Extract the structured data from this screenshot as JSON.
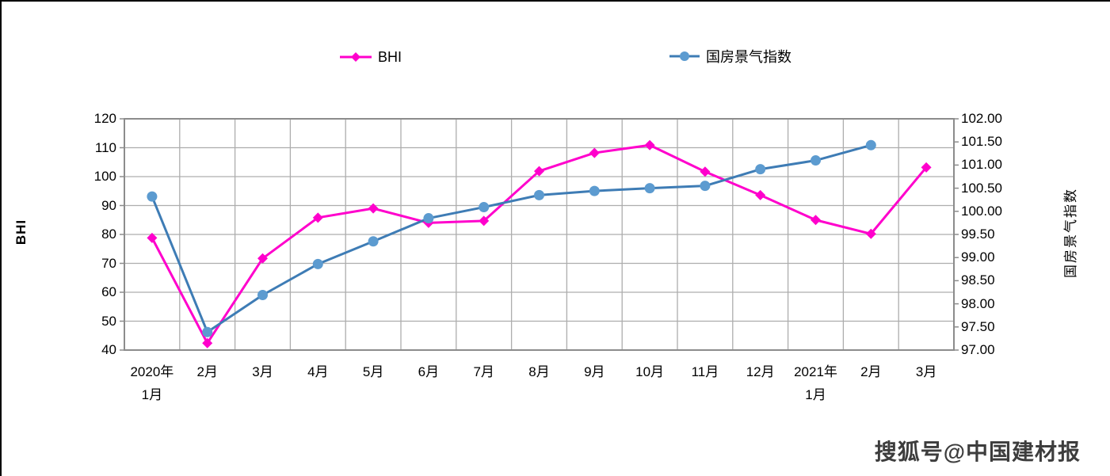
{
  "page": {
    "background": "#ffffff",
    "frame_color": "#000000"
  },
  "legend": {
    "items": [
      {
        "label": "BHI",
        "color": "#FF00CC",
        "marker": "diamond",
        "marker_color": "#FF00CC"
      },
      {
        "label": "国房景气指数",
        "color": "#3E7CB5",
        "marker": "circle",
        "marker_color": "#5C9BD0"
      }
    ]
  },
  "axes": {
    "left": {
      "title": "BHI",
      "tick_labels": [
        "120",
        "110",
        "100",
        "90",
        "80",
        "70",
        "60",
        "50",
        "40"
      ]
    },
    "right": {
      "title": "国房景气指数",
      "tick_labels": [
        "102.00",
        "101.50",
        "101.00",
        "100.50",
        "100.00",
        "99.50",
        "99.00",
        "98.50",
        "98.00",
        "97.50",
        "97.00"
      ]
    },
    "x": {
      "tick_labels": [
        [
          "2020年",
          "1月"
        ],
        [
          "2月"
        ],
        [
          "3月"
        ],
        [
          "4月"
        ],
        [
          "5月"
        ],
        [
          "6月"
        ],
        [
          "7月"
        ],
        [
          "8月"
        ],
        [
          "9月"
        ],
        [
          "10月"
        ],
        [
          "11月"
        ],
        [
          "12月"
        ],
        [
          "2021年",
          "1月"
        ],
        [
          "2月"
        ],
        [
          "3月"
        ]
      ]
    }
  },
  "chart_data": {
    "type": "line",
    "categories": [
      "2020年1月",
      "2月",
      "3月",
      "4月",
      "5月",
      "6月",
      "7月",
      "8月",
      "9月",
      "10月",
      "11月",
      "12月",
      "2021年1月",
      "2月",
      "3月"
    ],
    "series": [
      {
        "name": "BHI",
        "axis": "left",
        "marker": "diamond",
        "color": "#FF00CC",
        "marker_color": "#FF00CC",
        "values": [
          78.8,
          42.4,
          71.7,
          85.8,
          89.0,
          84.0,
          84.7,
          101.9,
          108.2,
          110.9,
          101.7,
          93.6,
          85.0,
          80.2,
          103.2
        ]
      },
      {
        "name": "国房景气指数",
        "axis": "right",
        "marker": "circle",
        "color": "#3E7CB5",
        "marker_color": "#5C9BD0",
        "values": [
          100.32,
          97.39,
          98.19,
          98.86,
          99.35,
          99.85,
          100.09,
          100.35,
          100.44,
          100.5,
          100.55,
          100.91,
          101.1,
          101.43,
          null
        ]
      }
    ],
    "left_axis": {
      "label": "BHI",
      "range": [
        40,
        120
      ],
      "tick_step": 10
    },
    "right_axis": {
      "label": "国房景气指数",
      "range": [
        97,
        102
      ],
      "tick_step": 0.5
    },
    "grid": true,
    "legend_position": "top",
    "title": ""
  },
  "watermark": {
    "text": "搜狐号@中国建材报"
  },
  "colors": {
    "gridline": "#ADADAD",
    "plot_border": "#8C8C8C",
    "tick": "#8C8C8C",
    "axis_text": "#000000",
    "watermark_text": "#3D3D3D"
  }
}
